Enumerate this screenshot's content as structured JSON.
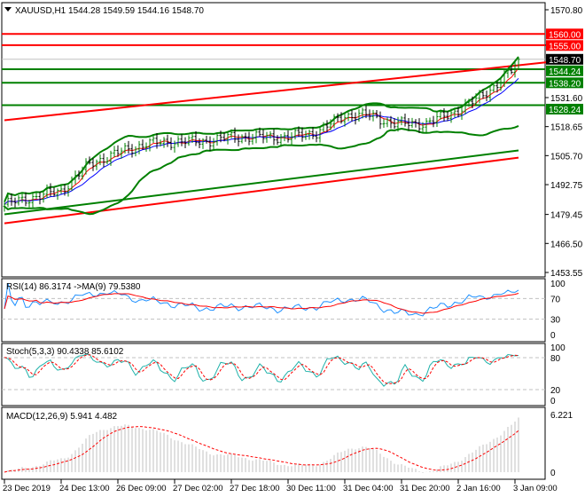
{
  "header": {
    "symbol": "XAUUSD,H1",
    "open": "1544.28",
    "high": "1549.59",
    "low": "1544.16",
    "close": "1548.70"
  },
  "colors": {
    "bull": "#008000",
    "bear": "#000000",
    "resistance": "#ff0000",
    "support": "#008000",
    "ma_fast": "#ff0000",
    "ma_slow": "#0000ff",
    "bands": "#008000",
    "rsi": "#1e90ff",
    "rsi_ma": "#ff0000",
    "stoch_main": "#20b2aa",
    "stoch_signal": "#ff0000",
    "macd_hist": "#c0c0c0",
    "macd_signal": "#ff0000"
  },
  "chart_data": {
    "type": "line",
    "title": "XAUUSD,H1",
    "price_ticks": [
      "1570.80",
      "1555.00",
      "1531.60",
      "1518.65",
      "1505.70",
      "1492.75",
      "1479.45",
      "1466.50",
      "1453.55"
    ],
    "ylim": [
      1453.55,
      1570.8
    ],
    "time_ticks": [
      "23 Dec 2019",
      "24 Dec 13:00",
      "26 Dec 09:00",
      "27 Dec 02:00",
      "27 Dec 18:00",
      "30 Dec 11:00",
      "31 Dec 04:00",
      "31 Dec 20:00",
      "2 Jan 16:00",
      "3 Jan 09:00"
    ],
    "approx_close": [
      {
        "bar": 0,
        "price": 1484
      },
      {
        "bar": 16,
        "price": 1490
      },
      {
        "bar": 24,
        "price": 1502
      },
      {
        "bar": 32,
        "price": 1507
      },
      {
        "bar": 40,
        "price": 1511
      },
      {
        "bar": 48,
        "price": 1512
      },
      {
        "bar": 56,
        "price": 1512
      },
      {
        "bar": 64,
        "price": 1514
      },
      {
        "bar": 80,
        "price": 1514
      },
      {
        "bar": 88,
        "price": 1516
      },
      {
        "bar": 96,
        "price": 1523.6
      },
      {
        "bar": 102,
        "price": 1524
      },
      {
        "bar": 110,
        "price": 1520
      },
      {
        "bar": 112,
        "price": 1520
      },
      {
        "bar": 119,
        "price": 1520
      },
      {
        "bar": 128,
        "price": 1526
      },
      {
        "bar": 132,
        "price": 1529.5
      },
      {
        "bar": 139,
        "price": 1537.5
      },
      {
        "bar": 143,
        "price": 1543.5
      },
      {
        "bar": 145,
        "price": 1548.7
      }
    ],
    "levels": [
      {
        "price": 1560.0,
        "label": "1560.00",
        "color": "#ff0000"
      },
      {
        "price": 1555.0,
        "label": "1555.00",
        "color": "#ff0000"
      },
      {
        "price": 1548.7,
        "label": "1548.70",
        "color": "#000000"
      },
      {
        "price": 1544.24,
        "label": "1544.24",
        "color": "#008000"
      },
      {
        "price": 1538.2,
        "label": "1538.20",
        "color": "#008000"
      },
      {
        "price": 1528.24,
        "label": "1528.24",
        "color": "#008000"
      }
    ],
    "trendlines": [
      {
        "color": "#ff0000",
        "from": {
          "bar": 0,
          "price": 1521.5
        },
        "to": {
          "bar": 153,
          "price": 1547.4
        }
      },
      {
        "color": "#ff0000",
        "from": {
          "bar": 0,
          "price": 1475.5
        },
        "to": {
          "bar": 145,
          "price": 1504.8
        }
      },
      {
        "color": "#008000",
        "from": {
          "bar": 0,
          "price": 1479.5
        },
        "to": {
          "bar": 145,
          "price": 1508.0
        }
      }
    ],
    "rsi": {
      "label": "RSI(14) 86.3174  ->MA(9) 79.5380",
      "ticks": [
        "100",
        "70",
        "30",
        "0"
      ],
      "levels": [
        70,
        30
      ]
    },
    "stoch": {
      "label": "Stoch(5,3,3) 90.4338 85.6102",
      "ticks": [
        "100",
        "80",
        "20",
        "0"
      ],
      "levels": [
        80,
        20
      ]
    },
    "macd": {
      "label": "MACD(12,26,9) 5.941 4.482",
      "ticks": [
        "6.221",
        "0"
      ],
      "max": 6.221
    }
  }
}
